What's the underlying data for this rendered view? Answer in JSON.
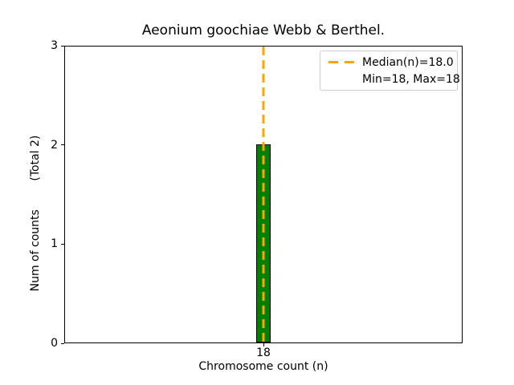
{
  "chart_data": {
    "type": "bar",
    "title": "Aeonium goochiae Webb & Berthel.",
    "xlabel": "Chromosome count (n)",
    "ylabel": "Num of counts        (Total 2)",
    "categories": [
      "18"
    ],
    "values": [
      2
    ],
    "total": 2,
    "ylim": [
      0,
      3
    ],
    "yticks": [
      "0",
      "1",
      "2",
      "3"
    ],
    "grid": false,
    "median": "18.0",
    "min": "18",
    "max": "18",
    "legend_position": "upper right",
    "legend_items": [
      {
        "label": "Median(n)=18.0",
        "swatch": "orange-dashed-line"
      },
      {
        "label": "Min=18, Max=18",
        "swatch": "none"
      }
    ],
    "colors": {
      "bar_fill": "#008000",
      "bar_edge": "#000000",
      "median_line": "#FFA500",
      "axis": "#000000",
      "legend_border": "#cccccc",
      "background": "#ffffff"
    }
  }
}
